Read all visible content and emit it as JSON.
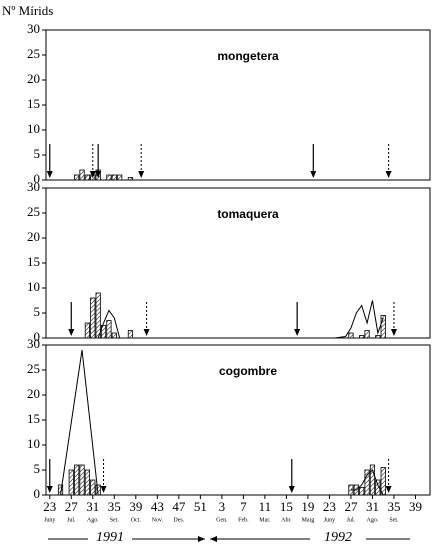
{
  "y_axis_label": "Nº Mírids",
  "year_labels": [
    "1991",
    "1992"
  ],
  "chart_data": [
    {
      "type": "bar",
      "title": "mongetera",
      "xlim": [
        22.3,
        93.7
      ],
      "ylim": [
        0,
        30
      ],
      "yticks": [
        0,
        5,
        10,
        15,
        20,
        25,
        30
      ],
      "bars": {
        "x": [
          28,
          29,
          30,
          31,
          32,
          34,
          35,
          36,
          38
        ],
        "values": [
          1,
          2,
          1,
          1,
          2,
          1,
          1,
          1,
          0.5
        ]
      },
      "arrows": [
        {
          "x": 23,
          "style": "solid"
        },
        {
          "x": 31,
          "style": "dashed"
        },
        {
          "x": 32,
          "style": "solid"
        },
        {
          "x": 40,
          "style": "dashed"
        },
        {
          "x": 72,
          "style": "solid"
        },
        {
          "x": 86,
          "style": "dashed"
        }
      ]
    },
    {
      "type": "bar",
      "title": "tomaquera",
      "xlim": [
        22.3,
        93.7
      ],
      "ylim": [
        0,
        30
      ],
      "yticks": [
        0,
        5,
        10,
        15,
        20,
        25,
        30
      ],
      "bars": {
        "x": [
          30,
          31,
          32,
          33,
          34,
          35,
          38,
          79,
          81,
          82,
          84,
          85
        ],
        "values": [
          3,
          8,
          9,
          2.5,
          3.5,
          1,
          1.5,
          1,
          0.5,
          1.5,
          0.5,
          4.5
        ]
      },
      "line": {
        "x": [
          32,
          33,
          34,
          35,
          36,
          null,
          76,
          78,
          79,
          80,
          81,
          82,
          83,
          84,
          85
        ],
        "values": [
          0,
          3,
          5.5,
          4,
          0,
          null,
          0,
          0.3,
          2,
          5,
          6.5,
          3,
          7.5,
          1,
          4
        ]
      },
      "arrows": [
        {
          "x": 27,
          "style": "solid"
        },
        {
          "x": 41,
          "style": "dashed"
        },
        {
          "x": 69,
          "style": "solid"
        },
        {
          "x": 87,
          "style": "dashed"
        }
      ]
    },
    {
      "type": "bar",
      "title": "cogombre",
      "xlim": [
        22.3,
        93.7
      ],
      "ylim": [
        0,
        30
      ],
      "yticks": [
        0,
        5,
        10,
        15,
        20,
        25,
        30
      ],
      "bars": {
        "x": [
          25,
          27,
          28,
          29,
          30,
          31,
          32,
          79,
          80,
          81,
          82,
          83,
          84,
          85
        ],
        "values": [
          2,
          5,
          6,
          6,
          5,
          3,
          2,
          2,
          2,
          1.5,
          5,
          6,
          3,
          5.5
        ]
      },
      "line": {
        "x": [
          25,
          29,
          32,
          null,
          79,
          80,
          81,
          82,
          83,
          84,
          85
        ],
        "values": [
          0,
          29,
          0,
          null,
          1,
          1,
          2,
          4,
          5,
          2,
          0
        ]
      },
      "arrows": [
        {
          "x": 23,
          "style": "solid"
        },
        {
          "x": 33,
          "style": "dashed"
        },
        {
          "x": 68,
          "style": "solid"
        },
        {
          "x": 86,
          "style": "dashed"
        }
      ],
      "xticks": [
        23,
        27,
        31,
        35,
        39,
        43,
        47,
        51,
        {
          "value": 55,
          "label": "3"
        },
        {
          "value": 59,
          "label": "7"
        },
        {
          "value": 63,
          "label": "11"
        },
        {
          "value": 67,
          "label": "15"
        },
        {
          "value": 71,
          "label": "19"
        },
        {
          "value": 75,
          "label": "23"
        },
        {
          "value": 79,
          "label": "27"
        },
        {
          "value": 83,
          "label": "31"
        },
        {
          "value": 87,
          "label": "35"
        },
        {
          "value": 91,
          "label": "39"
        }
      ],
      "month_labels": [
        "Juny",
        "Jul.",
        "Ago.",
        "Set.",
        "Oct.",
        "Nov.",
        "Des.",
        null,
        "Gen.",
        "Feb.",
        "Mar.",
        "Abr.",
        "Maig",
        "Juny",
        "Jul.",
        "Ago.",
        "Set.",
        null
      ]
    }
  ]
}
